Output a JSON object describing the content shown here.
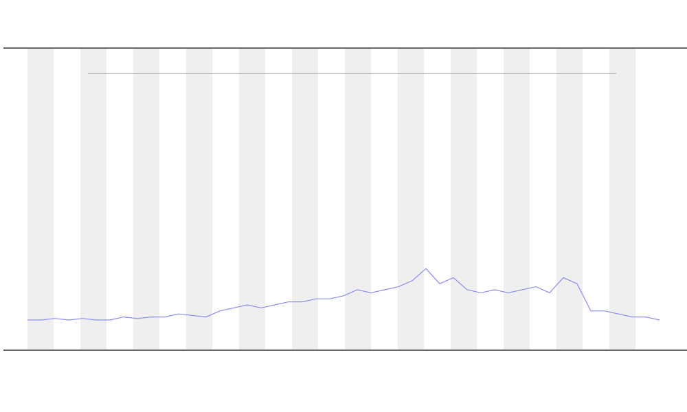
{
  "chart_data": {
    "type": "line",
    "x": [
      0,
      1,
      2,
      3,
      4,
      5,
      6,
      7,
      8,
      9,
      10,
      11,
      12,
      13,
      14,
      15,
      16,
      17,
      18,
      19,
      20,
      21,
      22,
      23,
      24,
      25,
      26,
      27,
      28,
      29,
      30,
      31,
      32,
      33,
      34,
      35,
      36,
      37,
      38,
      39,
      40,
      41,
      42,
      43,
      44,
      45,
      46
    ],
    "xlim": [
      0,
      46
    ],
    "series": [
      {
        "color": "#8a8af0",
        "values": [
          10,
          10,
          10.5,
          10,
          10.5,
          10,
          10,
          11,
          10.5,
          11,
          11,
          12,
          11.5,
          11,
          13,
          14,
          15,
          14,
          15,
          16,
          16,
          17,
          17,
          18,
          20,
          19,
          20,
          21,
          23,
          27,
          22,
          24,
          20,
          19,
          20,
          19,
          20,
          21,
          19,
          24,
          22,
          13,
          13,
          12,
          11,
          11,
          10
        ]
      }
    ],
    "ylim": [
      0,
      100
    ]
  }
}
